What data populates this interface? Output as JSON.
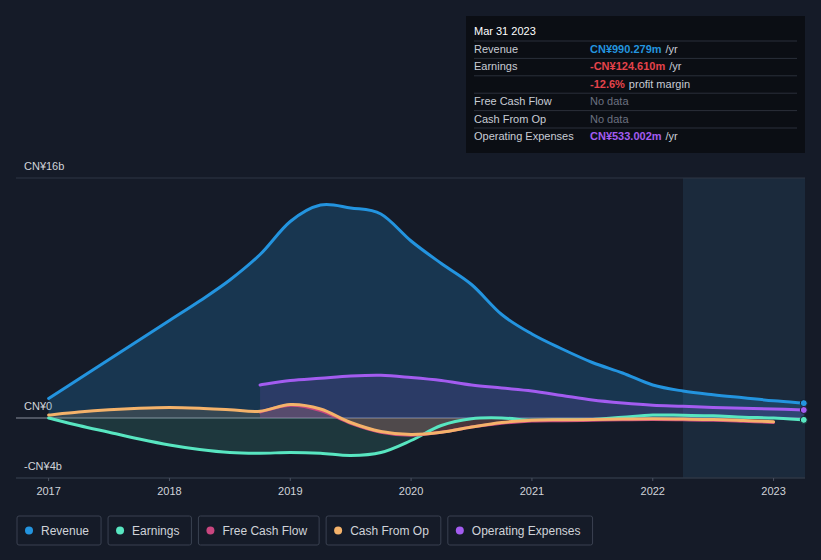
{
  "chart_data": {
    "type": "area",
    "x": [
      2017,
      2017.25,
      2017.5,
      2017.75,
      2018,
      2018.25,
      2018.5,
      2018.75,
      2019,
      2019.25,
      2019.5,
      2019.75,
      2020,
      2020.25,
      2020.5,
      2020.75,
      2021,
      2021.25,
      2021.5,
      2021.75,
      2022,
      2022.25,
      2022.5,
      2022.75,
      2023,
      2023.25
    ],
    "xlim": [
      2016.73,
      2023.26
    ],
    "xticks": [
      2017,
      2018,
      2019,
      2020,
      2021,
      2022,
      2023
    ],
    "ylim": [
      -4,
      16
    ],
    "yticks": [
      {
        "value": -4,
        "label": "-CN¥4b"
      },
      {
        "value": 0,
        "label": "CN¥0"
      },
      {
        "value": 16,
        "label": "CN¥16b"
      }
    ],
    "grid": true,
    "legend": "bottom",
    "highlight_x": [
      2022.25,
      2023.26
    ],
    "series": [
      {
        "name": "Revenue",
        "color": "#2394df",
        "marker": "circle",
        "values": [
          1.3,
          2.6,
          3.9,
          5.2,
          6.5,
          7.8,
          9.2,
          10.9,
          13.1,
          14.2,
          14.0,
          13.6,
          11.8,
          10.3,
          8.9,
          6.9,
          5.6,
          4.6,
          3.7,
          3.0,
          2.2,
          1.8,
          1.55,
          1.35,
          1.15,
          0.99
        ]
      },
      {
        "name": "Earnings",
        "color": "#58e6c1",
        "marker": "circle",
        "values": [
          0,
          -0.5,
          -0.95,
          -1.4,
          -1.8,
          -2.1,
          -2.3,
          -2.35,
          -2.3,
          -2.35,
          -2.5,
          -2.3,
          -1.5,
          -0.5,
          -0.05,
          0,
          -0.15,
          -0.12,
          -0.1,
          0.05,
          0.2,
          0.18,
          0.15,
          0.05,
          0,
          -0.125
        ]
      },
      {
        "name": "Free Cash Flow",
        "color": "#c9467f",
        "values": [
          null,
          null,
          null,
          null,
          null,
          null,
          null,
          0.4,
          0.85,
          0.5,
          -0.35,
          -0.95,
          -1.15,
          -0.95,
          -0.6,
          -0.35,
          -0.2,
          -0.18,
          -0.15,
          -0.12,
          -0.1,
          -0.12,
          -0.15,
          -0.22,
          -0.3,
          null
        ]
      },
      {
        "name": "Cash From Op",
        "color": "#f4b26a",
        "values": [
          0.2,
          0.4,
          0.55,
          0.65,
          0.7,
          0.65,
          0.55,
          0.45,
          0.9,
          0.6,
          -0.3,
          -0.9,
          -1.1,
          -0.95,
          -0.6,
          -0.3,
          -0.15,
          -0.12,
          -0.1,
          -0.07,
          -0.05,
          -0.07,
          -0.1,
          -0.17,
          -0.25,
          null
        ]
      },
      {
        "name": "Operating Expenses",
        "color": "#a35cf0",
        "marker": "circle",
        "values": [
          null,
          null,
          null,
          null,
          null,
          null,
          null,
          2.2,
          2.5,
          2.65,
          2.8,
          2.85,
          2.7,
          2.5,
          2.2,
          2.0,
          1.8,
          1.5,
          1.2,
          1.0,
          0.85,
          0.78,
          0.7,
          0.65,
          0.6,
          0.533
        ]
      }
    ],
    "tooltip": {
      "date": "Mar 31 2023",
      "rows": [
        {
          "label": "Revenue",
          "value": "CN¥990.279m",
          "suffix": "/yr",
          "color": "#2394df"
        },
        {
          "label": "Earnings",
          "value": "-CN¥124.610m",
          "suffix": "/yr",
          "color": "#e5434b"
        },
        {
          "value": "-12.6%",
          "suffix": "profit margin",
          "color": "#e5434b"
        },
        {
          "label": "Free Cash Flow",
          "value": "No data",
          "color": "#6b7180"
        },
        {
          "label": "Cash From Op",
          "value": "No data",
          "color": "#6b7180"
        },
        {
          "label": "Operating Expenses",
          "value": "CN¥533.002m",
          "suffix": "/yr",
          "color": "#a35cf0"
        }
      ]
    }
  }
}
